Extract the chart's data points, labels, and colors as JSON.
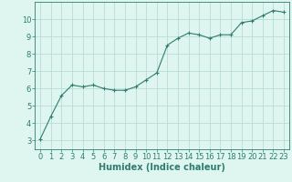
{
  "x": [
    0,
    1,
    2,
    3,
    4,
    5,
    6,
    7,
    8,
    9,
    10,
    11,
    12,
    13,
    14,
    15,
    16,
    17,
    18,
    19,
    20,
    21,
    22,
    23
  ],
  "y": [
    3.1,
    4.4,
    5.6,
    6.2,
    6.1,
    6.2,
    6.0,
    5.9,
    5.9,
    6.1,
    6.5,
    6.9,
    8.5,
    8.9,
    9.2,
    9.1,
    8.9,
    9.1,
    9.1,
    9.8,
    9.9,
    10.2,
    10.5,
    10.4
  ],
  "line_color": "#2e7d6e",
  "marker": "+",
  "marker_size": 3,
  "bg_color": "#dff5f0",
  "grid_color": "#b8ddd6",
  "axis_color": "#2e7d6e",
  "xlabel": "Humidex (Indice chaleur)",
  "xlim": [
    -0.5,
    23.5
  ],
  "ylim": [
    2.5,
    11.0
  ],
  "yticks": [
    3,
    4,
    5,
    6,
    7,
    8,
    9,
    10
  ],
  "xticks": [
    0,
    1,
    2,
    3,
    4,
    5,
    6,
    7,
    8,
    9,
    10,
    11,
    12,
    13,
    14,
    15,
    16,
    17,
    18,
    19,
    20,
    21,
    22,
    23
  ],
  "tick_fontsize": 6,
  "xlabel_fontsize": 7
}
